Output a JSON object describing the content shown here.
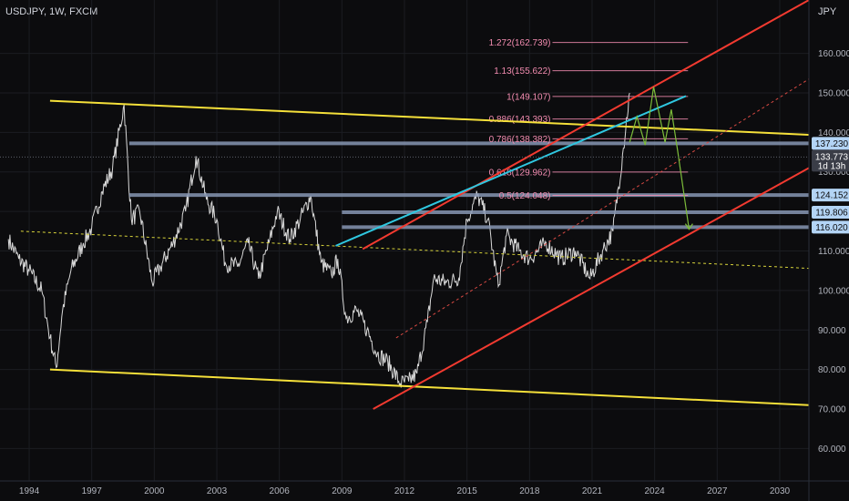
{
  "header": {
    "symbol": "USDJPY, 1W, FXCM",
    "currency": "JPY"
  },
  "chart_data": {
    "type": "line",
    "title": "USDJPY, 1W, FXCM",
    "ylabel": "JPY",
    "xlim": [
      1992.6,
      2031.4
    ],
    "ylim": [
      51.8,
      173.5
    ],
    "x_ticks": [
      "1994",
      "1997",
      "2000",
      "2003",
      "2006",
      "2009",
      "2012",
      "2015",
      "2018",
      "2021",
      "2024",
      "2027",
      "2030"
    ],
    "y_ticks": [
      "60.000",
      "70.000",
      "80.000",
      "90.000",
      "100.000",
      "110.000",
      "120.000",
      "130.000",
      "140.000",
      "150.000",
      "160.000"
    ],
    "price_series": {
      "x": [
        1993.0,
        1993.5,
        1994.0,
        1994.6,
        1995.0,
        1995.3,
        1995.6,
        1996.0,
        1996.6,
        1997.0,
        1997.5,
        1998.0,
        1998.55,
        1998.9,
        1999.3,
        1999.9,
        2000.3,
        2000.9,
        2001.5,
        2002.0,
        2002.5,
        2003.0,
        2003.4,
        2004.0,
        2004.5,
        2005.0,
        2005.5,
        2005.9,
        2006.5,
        2007.0,
        2007.5,
        2008.0,
        2008.5,
        2008.8,
        2009.2,
        2009.7,
        2010.2,
        2010.7,
        2011.2,
        2011.8,
        2012.2,
        2012.6,
        2013.1,
        2013.4,
        2014.0,
        2014.6,
        2015.0,
        2015.5,
        2016.0,
        2016.5,
        2016.9,
        2017.5,
        2018.0,
        2018.8,
        2019.5,
        2020.2,
        2020.9,
        2021.5,
        2022.0,
        2022.5,
        2022.8
      ],
      "y": [
        113.0,
        108.0,
        105.0,
        100.0,
        88.0,
        80.5,
        95.0,
        105.0,
        112.0,
        116.0,
        125.0,
        131.0,
        147.0,
        118.0,
        120.0,
        102.0,
        106.0,
        112.0,
        120.0,
        134.0,
        123.0,
        118.0,
        107.0,
        106.0,
        112.0,
        103.0,
        112.0,
        120.0,
        113.0,
        118.0,
        124.0,
        107.0,
        104.0,
        108.0,
        93.0,
        95.0,
        90.0,
        84.0,
        82.0,
        76.5,
        77.0,
        79.0,
        92.0,
        103.0,
        102.0,
        103.0,
        118.0,
        124.0,
        118.0,
        101.0,
        114.0,
        110.0,
        108.0,
        112.0,
        108.0,
        110.0,
        103.0,
        110.0,
        115.0,
        136.0,
        150.0
      ]
    },
    "trendlines": [
      {
        "name": "upper channel (yellow)",
        "color": "#f5e03a",
        "points": [
          [
            1995.0,
            148.0
          ],
          [
            2031.4,
            139.4
          ]
        ]
      },
      {
        "name": "lower channel (yellow)",
        "color": "#f5e03a",
        "points": [
          [
            1995.0,
            80.0
          ],
          [
            2031.4,
            71.0
          ]
        ]
      },
      {
        "name": "midline (yellow dashed)",
        "color": "#d6d23a",
        "dashed": true,
        "points": [
          [
            1993.6,
            115.0
          ],
          [
            2031.4,
            105.6
          ]
        ]
      },
      {
        "name": "upper red",
        "color": "#f23a30",
        "points": [
          [
            2010.0,
            110.5
          ],
          [
            2031.4,
            173.5
          ]
        ]
      },
      {
        "name": "middle red (dashed)",
        "color": "#d94a44",
        "dashed": true,
        "points": [
          [
            2011.6,
            88.0
          ],
          [
            2031.4,
            153.5
          ]
        ]
      },
      {
        "name": "lower red",
        "color": "#f23a30",
        "points": [
          [
            2010.5,
            70.0
          ],
          [
            2031.4,
            131.0
          ]
        ]
      },
      {
        "name": "cyan",
        "color": "#2fc7e0",
        "points": [
          [
            2008.7,
            111.3
          ],
          [
            2025.5,
            149.2
          ]
        ]
      }
    ],
    "zigzag": {
      "color": "#7dbd3a",
      "points": [
        [
          2022.8,
          137.5
        ],
        [
          2023.15,
          144.0
        ],
        [
          2023.55,
          136.8
        ],
        [
          2023.95,
          151.5
        ],
        [
          2024.5,
          137.5
        ],
        [
          2024.8,
          145.8
        ],
        [
          2025.1,
          135.5
        ],
        [
          2025.65,
          115.5
        ]
      ]
    },
    "horizontal_levels": [
      {
        "value": 137.23,
        "label": "137.230",
        "from": 1998.8
      },
      {
        "value": 124.152,
        "label": "124.152",
        "from": 1998.8
      },
      {
        "value": 119.806,
        "label": "119.806",
        "from": 2009.0
      },
      {
        "value": 116.02,
        "label": "116.020",
        "from": 2009.0
      }
    ],
    "fibonacci": [
      {
        "ratio": "1.272",
        "price": "162.739",
        "value": 162.739
      },
      {
        "ratio": "1.13",
        "price": "155.622",
        "value": 155.622
      },
      {
        "ratio": "1",
        "price": "149.107",
        "value": 149.107
      },
      {
        "ratio": "0.886",
        "price": "143.393",
        "value": 143.393
      },
      {
        "ratio": "0.786",
        "price": "138.382",
        "value": 138.382
      },
      {
        "ratio": "0.618",
        "price": "129.962",
        "value": 129.962
      },
      {
        "ratio": "0.5",
        "price": "124.048",
        "value": 124.048
      }
    ],
    "fib_range": [
      2019.1,
      2025.6
    ],
    "current_price": {
      "value": 133.773,
      "label": "133.773",
      "countdown": "1d 13h"
    },
    "colors": {
      "background": "#0c0c0e",
      "grid": "#1b1d22",
      "price": "#d8d8d8",
      "level": "#8796b3",
      "badge": "#b3d4f5",
      "fib": "#f28cb0"
    }
  }
}
